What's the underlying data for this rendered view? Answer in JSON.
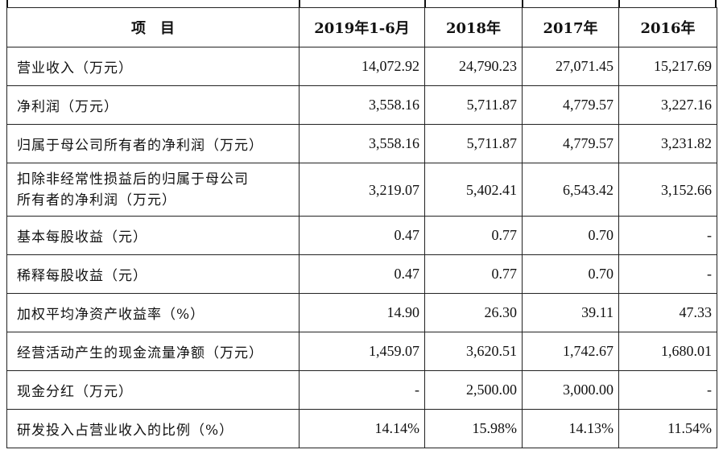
{
  "table": {
    "headers": [
      "项　目",
      "2019年1-6月",
      "2018年",
      "2017年",
      "2016年"
    ],
    "rows": [
      {
        "label": "营业收入（万元）",
        "values": [
          "14,072.92",
          "24,790.23",
          "27,071.45",
          "15,217.69"
        ]
      },
      {
        "label": "净利润（万元）",
        "values": [
          "3,558.16",
          "5,711.87",
          "4,779.57",
          "3,227.16"
        ]
      },
      {
        "label": "归属于母公司所有者的净利润（万元）",
        "values": [
          "3,558.16",
          "5,711.87",
          "4,779.57",
          "3,231.82"
        ]
      },
      {
        "label": "扣除非经常性损益后的归属于母公司所有者的净利润（万元）",
        "label_line1": "扣除非经常性损益后的归属于母公司",
        "label_line2": "所有者的净利润（万元）",
        "values": [
          "3,219.07",
          "5,402.41",
          "6,543.42",
          "3,152.66"
        ]
      },
      {
        "label": "基本每股收益（元）",
        "values": [
          "0.47",
          "0.77",
          "0.70",
          "-"
        ]
      },
      {
        "label": "稀释每股收益（元）",
        "values": [
          "0.47",
          "0.77",
          "0.70",
          "-"
        ]
      },
      {
        "label": "加权平均净资产收益率（%）",
        "values": [
          "14.90",
          "26.30",
          "39.11",
          "47.33"
        ]
      },
      {
        "label": "经营活动产生的现金流量净额（万元）",
        "values": [
          "1,459.07",
          "3,620.51",
          "1,742.67",
          "1,680.01"
        ]
      },
      {
        "label": "现金分红（万元）",
        "values": [
          "-",
          "2,500.00",
          "3,000.00",
          "-"
        ]
      },
      {
        "label": "研发投入占营业收入的比例（%）",
        "values": [
          "14.14%",
          "15.98%",
          "14.13%",
          "11.54%"
        ]
      }
    ]
  }
}
